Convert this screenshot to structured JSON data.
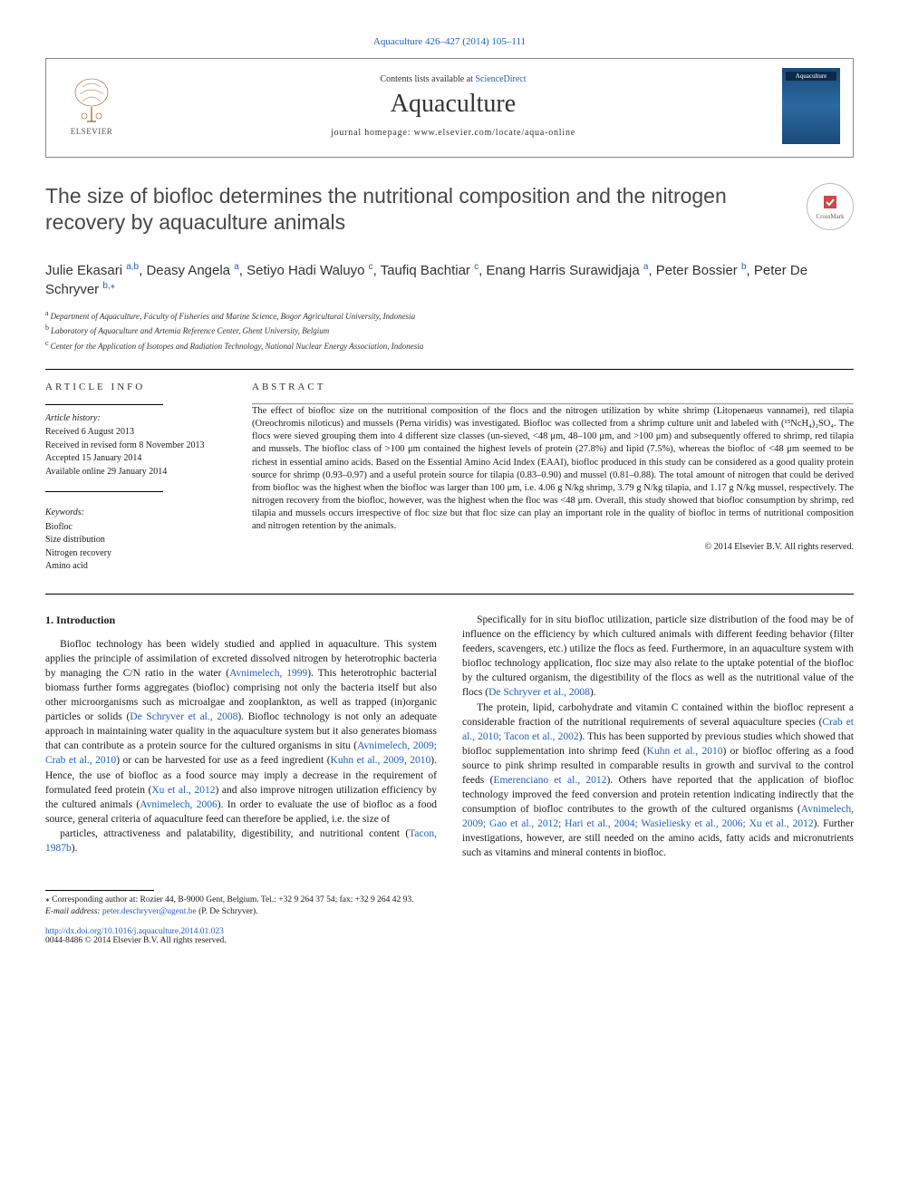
{
  "top_citation": "Aquaculture 426–427 (2014) 105–111",
  "header": {
    "contents_prefix": "Contents lists available at ",
    "contents_link": "ScienceDirect",
    "journal": "Aquaculture",
    "homepage_prefix": "journal homepage: ",
    "homepage": "www.elsevier.com/locate/aqua-online",
    "publisher": "ELSEVIER",
    "cover_label": "Aquaculture"
  },
  "crossmark_label": "CrossMark",
  "title": "The size of biofloc determines the nutritional composition and the nitrogen recovery by aquaculture animals",
  "authors_html": "Julie Ekasari |a,b|, Deasy Angela |a|, Setiyo Hadi Waluyo |c|, Taufiq Bachtiar |c|, Enang Harris Surawidjaja |a|, Peter Bossier |b|, Peter De Schryver |b,*|",
  "authors": [
    {
      "name": "Julie Ekasari",
      "sup": "a,b"
    },
    {
      "name": "Deasy Angela",
      "sup": "a"
    },
    {
      "name": "Setiyo Hadi Waluyo",
      "sup": "c"
    },
    {
      "name": "Taufiq Bachtiar",
      "sup": "c"
    },
    {
      "name": "Enang Harris Surawidjaja",
      "sup": "a"
    },
    {
      "name": "Peter Bossier",
      "sup": "b"
    },
    {
      "name": "Peter De Schryver",
      "sup": "b,",
      "star": true
    }
  ],
  "affiliations": [
    {
      "sup": "a",
      "text": "Department of Aquaculture, Faculty of Fisheries and Marine Science, Bogor Agricultural University, Indonesia"
    },
    {
      "sup": "b",
      "text": "Laboratory of Aquaculture and Artemia Reference Center, Ghent University, Belgium"
    },
    {
      "sup": "c",
      "text": "Center for the Application of Isotopes and Radiation Technology, National Nuclear Energy Association, Indonesia"
    }
  ],
  "article_info_heading": "ARTICLE INFO",
  "abstract_heading": "ABSTRACT",
  "history_heading": "Article history:",
  "history": [
    "Received 6 August 2013",
    "Received in revised form 8 November 2013",
    "Accepted 15 January 2014",
    "Available online 29 January 2014"
  ],
  "keywords_heading": "Keywords:",
  "keywords": [
    "Biofloc",
    "Size distribution",
    "Nitrogen recovery",
    "Amino acid"
  ],
  "abstract": "The effect of biofloc size on the nutritional composition of the flocs and the nitrogen utilization by white shrimp (Litopenaeus vannamei), red tilapia (Oreochromis niloticus) and mussels (Perna viridis) was investigated. Biofloc was collected from a shrimp culture unit and labeled with (¹⁵NcH₄)₂SO₄. The flocs were sieved grouping them into 4 different size classes (un-sieved, <48 μm, 48–100 μm, and >100 μm) and subsequently offered to shrimp, red tilapia and mussels. The biofloc class of >100 μm contained the highest levels of protein (27.8%) and lipid (7.5%), whereas the biofloc of <48 μm seemed to be richest in essential amino acids. Based on the Essential Amino Acid Index (EAAI), biofloc produced in this study can be considered as a good quality protein source for shrimp (0.93–0.97) and a useful protein source for tilapia (0.83–0.90) and mussel (0.81–0.88). The total amount of nitrogen that could be derived from biofloc was the highest when the biofloc was larger than 100 μm, i.e. 4.06 g N/kg shrimp, 3.79 g N/kg tilapia, and 1.17 g N/kg mussel, respectively. The nitrogen recovery from the biofloc, however, was the highest when the floc was <48 μm. Overall, this study showed that biofloc consumption by shrimp, red tilapia and mussels occurs irrespective of floc size but that floc size can play an important role in the quality of biofloc in terms of nutritional composition and nitrogen retention by the animals.",
  "copyright": "© 2014 Elsevier B.V. All rights reserved.",
  "section1_heading": "1. Introduction",
  "body_left": [
    "Biofloc technology has been widely studied and applied in aquaculture. This system applies the principle of assimilation of excreted dissolved nitrogen by heterotrophic bacteria by managing the C/N ratio in the water (|Avnimelech, 1999|). This heterotrophic bacterial biomass further forms aggregates (biofloc) comprising not only the bacteria itself but also other microorganisms such as microalgae and zooplankton, as well as trapped (in)organic particles or solids (|De Schryver et al., 2008|). Biofloc technology is not only an adequate approach in maintaining water quality in the aquaculture system but it also generates biomass that can contribute as a protein source for the cultured organisms in situ (|Avnimelech, 2009; Crab et al., 2010|) or can be harvested for use as a feed ingredient (|Kuhn et al., 2009, 2010|). Hence, the use of biofloc as a food source may imply a decrease in the requirement of formulated feed protein (|Xu et al., 2012|) and also improve nitrogen utilization efficiency by the cultured animals (|Avnimelech, 2006|). In order to evaluate the use of biofloc as a food source, general criteria of aquaculture feed can therefore be applied, i.e. the size of"
  ],
  "body_right": [
    "particles, attractiveness and palatability, digestibility, and nutritional content (|Tacon, 1987b|).",
    "Specifically for in situ biofloc utilization, particle size distribution of the food may be of influence on the efficiency by which cultured animals with different feeding behavior (filter feeders, scavengers, etc.) utilize the flocs as feed. Furthermore, in an aquaculture system with biofloc technology application, floc size may also relate to the uptake potential of the biofloc by the cultured organism, the digestibility of the flocs as well as the nutritional value of the flocs (|De Schryver et al., 2008|).",
    "The protein, lipid, carbohydrate and vitamin C contained within the biofloc represent a considerable fraction of the nutritional requirements of several aquaculture species (|Crab et al., 2010; Tacon et al., 2002|). This has been supported by previous studies which showed that biofloc supplementation into shrimp feed (|Kuhn et al., 2010|) or biofloc offering as a food source to pink shrimp resulted in comparable results in growth and survival to the control feeds (|Emerenciano et al., 2012|). Others have reported that the application of biofloc technology improved the feed conversion and protein retention indicating indirectly that the consumption of biofloc contributes to the growth of the cultured organisms (|Avnimelech, 2009; Gao et al., 2012; Hari et al., 2004; Wasieliesky et al., 2006; Xu et al., 2012|). Further investigations, however, are still needed on the amino acids, fatty acids and micronutrients such as vitamins and mineral contents in biofloc."
  ],
  "corresponding": "Corresponding author at: Rozier 44, B-9000 Gent, Belgium. Tel.: +32 9 264 37 54; fax: +32 9 264 42 93.",
  "email_label": "E-mail address:",
  "email": "peter.deschryver@ugent.be",
  "email_suffix": "(P. De Schryver).",
  "doi": "http://dx.doi.org/10.1016/j.aquaculture.2014.01.023",
  "issn_line": "0044-8486 © 2014 Elsevier B.V. All rights reserved.",
  "colors": {
    "link": "#2060c0",
    "text": "#1a1a1a",
    "heading": "#484848",
    "rule": "#000000"
  }
}
